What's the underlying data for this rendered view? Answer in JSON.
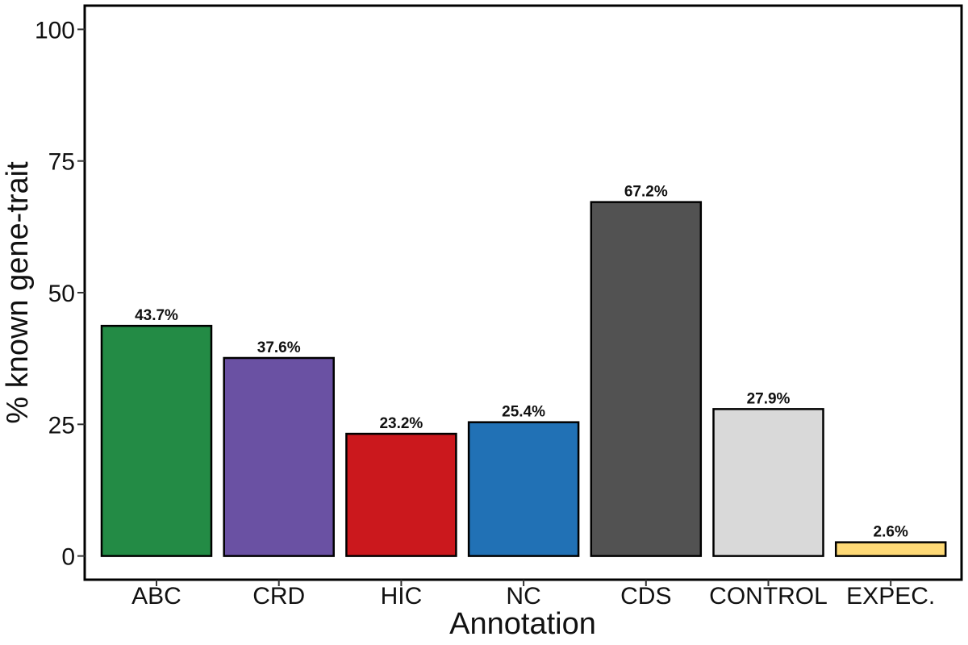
{
  "chart_data": {
    "type": "bar",
    "title": "",
    "xlabel": "Annotation",
    "ylabel": "% known gene-trait",
    "categories": [
      "ABC",
      "CRD",
      "HIC",
      "NC",
      "CDS",
      "CONTROL",
      "EXPEC."
    ],
    "values": [
      43.7,
      37.6,
      23.2,
      25.4,
      67.2,
      27.9,
      2.6
    ],
    "value_labels": [
      "43.7%",
      "37.6%",
      "23.2%",
      "25.4%",
      "67.2%",
      "27.9%",
      "2.6%"
    ],
    "colors": [
      "#238b45",
      "#6a51a3",
      "#cb181d",
      "#2171b5",
      "#525252",
      "#d9d9d9",
      "#fed976"
    ],
    "yticks": [
      0,
      25,
      50,
      75,
      100
    ],
    "ytick_labels": [
      "0",
      "25",
      "50",
      "75",
      "100"
    ],
    "ylim": [
      -4.5,
      104.5
    ],
    "grid": false,
    "legend": "none"
  }
}
